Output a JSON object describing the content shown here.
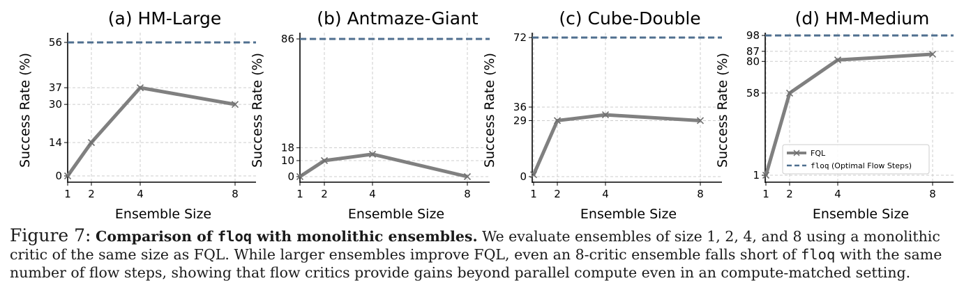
{
  "chart_data": [
    {
      "type": "line",
      "title": "(a) HM-Large",
      "xlabel": "Ensemble Size",
      "ylabel": "Success Rate (%)",
      "x": [
        1,
        2,
        4,
        8
      ],
      "xticks": [
        "1",
        "2",
        "4",
        "8"
      ],
      "yticks": [
        0,
        14,
        30,
        37,
        56
      ],
      "ylim": [
        0,
        56
      ],
      "grid": true,
      "series": [
        {
          "name": "FQL",
          "values": [
            0,
            14,
            37,
            30
          ],
          "color": "#808080"
        }
      ],
      "reference_line": {
        "name": "floq (Optimal Flow Steps)",
        "value": 56,
        "color": "#4f6f8f"
      }
    },
    {
      "type": "line",
      "title": "(b) Antmaze-Giant",
      "xlabel": "Ensemble Size",
      "ylabel": "Success Rate (%)",
      "x": [
        1,
        2,
        4,
        8
      ],
      "xticks": [
        "1",
        "2",
        "4",
        "8"
      ],
      "yticks": [
        0,
        10,
        18,
        86
      ],
      "ylim": [
        0,
        86
      ],
      "grid": true,
      "series": [
        {
          "name": "FQL",
          "values": [
            0,
            10,
            14,
            0
          ],
          "color": "#808080"
        }
      ],
      "reference_line": {
        "name": "floq (Optimal Flow Steps)",
        "value": 86,
        "color": "#4f6f8f"
      }
    },
    {
      "type": "line",
      "title": "(c) Cube-Double",
      "xlabel": "Ensemble Size",
      "ylabel": "Success Rate (%)",
      "x": [
        1,
        2,
        4,
        8
      ],
      "xticks": [
        "1",
        "2",
        "4",
        "8"
      ],
      "yticks": [
        0,
        29,
        36,
        72
      ],
      "ylim": [
        0,
        72
      ],
      "grid": true,
      "series": [
        {
          "name": "FQL",
          "values": [
            1,
            29,
            32,
            29
          ],
          "color": "#808080"
        }
      ],
      "reference_line": {
        "name": "floq (Optimal Flow Steps)",
        "value": 72,
        "color": "#4f6f8f"
      }
    },
    {
      "type": "line",
      "title": "(d) HM-Medium",
      "xlabel": "Ensemble Size",
      "ylabel": "Success Rate (%)",
      "x": [
        1,
        2,
        4,
        8
      ],
      "xticks": [
        "1",
        "2",
        "4",
        "8"
      ],
      "yticks": [
        1,
        58,
        80,
        87,
        98
      ],
      "ylim": [
        1,
        98
      ],
      "grid": true,
      "legend": "lower-right",
      "series": [
        {
          "name": "FQL",
          "values": [
            1,
            58,
            81,
            85
          ],
          "color": "#808080"
        }
      ],
      "reference_line": {
        "name": "floq (Optimal Flow Steps)",
        "value": 98,
        "color": "#4f6f8f"
      }
    }
  ],
  "caption": {
    "label": "Figure 7:",
    "bold_part1": "Comparison of ",
    "bold_mono": "floq",
    "bold_part2": " with monolithic ensembles.",
    "text1": " We evaluate ensembles of size 1, 2, 4, and 8 using a monolithic critic of the same size as FQL. While larger ensembles improve FQL, even an 8-critic ensemble falls short of ",
    "mono2": "floq",
    "text2": " with the same number of flow steps, showing that flow critics provide gains beyond parallel compute even in an compute-matched setting."
  }
}
